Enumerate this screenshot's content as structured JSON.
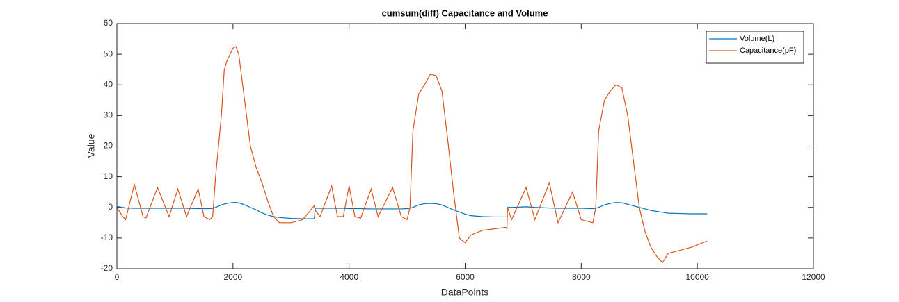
{
  "chart_data": {
    "type": "line",
    "title": "cumsum(diff) Capacitance and Volume",
    "x_label": "DataPoints",
    "y_label": "Value",
    "x": [
      0,
      100,
      150,
      300,
      450,
      500,
      700,
      900,
      1050,
      1200,
      1400,
      1500,
      1600,
      1650,
      1700,
      1800,
      1850,
      1900,
      2000,
      2050,
      2100,
      2200,
      2300,
      2400,
      2500,
      2600,
      2700,
      2800,
      3000,
      3200,
      3400,
      3420,
      3500,
      3700,
      3800,
      3900,
      4000,
      4100,
      4200,
      4380,
      4500,
      4750,
      4900,
      5000,
      5050,
      5100,
      5200,
      5300,
      5400,
      5500,
      5600,
      5700,
      5800,
      5900,
      6000,
      6100,
      6300,
      6500,
      6700,
      6720,
      6730,
      6800,
      7050,
      7200,
      7450,
      7600,
      7850,
      8000,
      8200,
      8250,
      8300,
      8400,
      8500,
      8600,
      8700,
      8800,
      8900,
      9000,
      9100,
      9200,
      9300,
      9400,
      9500,
      9700,
      9900,
      10100,
      10170
    ],
    "series": [
      {
        "name": "Volume(L)",
        "color": "#0072bd",
        "values": [
          0.3,
          0,
          -0.2,
          -0.3,
          -0.3,
          -0.3,
          -0.3,
          -0.3,
          -0.3,
          -0.3,
          -0.4,
          -0.4,
          -0.4,
          -0.3,
          0,
          0.8,
          1.1,
          1.3,
          1.6,
          1.6,
          1.5,
          0.8,
          0,
          -0.8,
          -1.8,
          -2.5,
          -3,
          -3.3,
          -3.6,
          -3.7,
          -3.7,
          -0.3,
          -0.3,
          -0.3,
          -0.3,
          -0.3,
          -0.4,
          -0.4,
          -0.4,
          -0.5,
          -0.5,
          -0.5,
          -0.5,
          -0.4,
          -0.3,
          0,
          0.8,
          1.2,
          1.3,
          1.2,
          0.8,
          0,
          -0.8,
          -1.5,
          -2.2,
          -2.7,
          -3,
          -3.1,
          -3.1,
          -3.1,
          0,
          0,
          0.2,
          0,
          -0.2,
          -0.3,
          -0.3,
          -0.3,
          -0.4,
          -0.3,
          0,
          0.8,
          1.3,
          1.6,
          1.5,
          1,
          0.5,
          0,
          -0.5,
          -1,
          -1.3,
          -1.6,
          -1.9,
          -2,
          -2.1,
          -2.1,
          -2.1
        ]
      },
      {
        "name": "Capacitance(pF)",
        "color": "#d95319",
        "values": [
          0,
          -3,
          -4,
          7.5,
          -3,
          -3.5,
          6.5,
          -3,
          6,
          -3,
          6,
          -3,
          -4,
          -3,
          10,
          30,
          45,
          48,
          52,
          52.5,
          50,
          35,
          20,
          13,
          8,
          2,
          -3,
          -5,
          -5,
          -4,
          0.5,
          -1,
          -3,
          7,
          -3,
          -3,
          7,
          -3,
          -3.5,
          6,
          -3,
          6.5,
          -3,
          -4,
          0,
          25,
          37,
          40,
          43.5,
          43,
          38,
          22,
          5,
          -10,
          -11.5,
          -9,
          -7.5,
          -7,
          -6.5,
          -7,
          0,
          -4,
          6.5,
          -4,
          8,
          -5,
          5,
          -4,
          -5,
          0,
          25,
          35,
          38,
          40,
          39,
          30,
          15,
          0,
          -8,
          -13,
          -16,
          -18,
          -15,
          -14,
          -13,
          -11.5,
          -11
        ]
      }
    ],
    "xlim": [
      0,
      12000
    ],
    "xticks": [
      0,
      2000,
      4000,
      6000,
      8000,
      10000,
      12000
    ],
    "ylim": [
      -20,
      60
    ],
    "yticks": [
      -20,
      -10,
      0,
      10,
      20,
      30,
      40,
      50,
      60
    ],
    "grid": false,
    "legend": "northeast"
  }
}
